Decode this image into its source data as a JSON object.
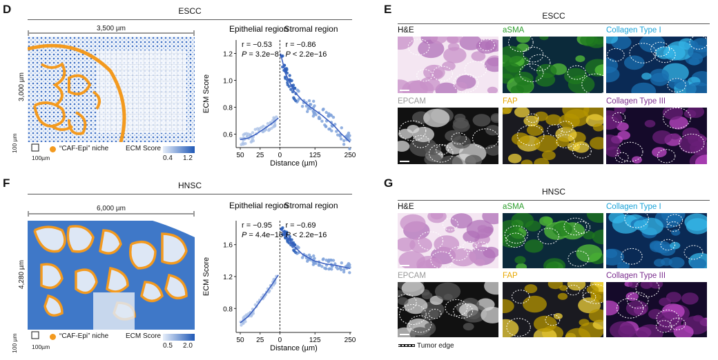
{
  "panels": {
    "D": {
      "letter": "D",
      "title": "ESCC",
      "width_label": "3,500 µm",
      "height_label": "3,000 µm",
      "scale_label_v": "100 µm",
      "scale_label_h": "100µm",
      "niche_label": "“CAF-Epi” niche",
      "ecm_label": "ECM Score",
      "cbar_min": "0.4",
      "cbar_max": "1.2"
    },
    "F": {
      "letter": "F",
      "title": "HNSC",
      "width_label": "6,000 µm",
      "height_label": "4,280 µm",
      "scale_label_v": "100 µm",
      "scale_label_h": "100µm",
      "niche_label": "“CAF-Epi” niche",
      "ecm_label": "ECM Score",
      "cbar_min": "0.5",
      "cbar_max": "2.0"
    },
    "E": {
      "letter": "E",
      "title": "ESCC"
    },
    "G": {
      "letter": "G",
      "title": "HNSC"
    }
  },
  "stains": [
    "H&E",
    "aSMA",
    "Collagen Type I",
    "EPCAM",
    "FAP",
    "Collagen Type III"
  ],
  "stain_colors": {
    "H&E": "#111111",
    "aSMA": "#2a9d2a",
    "Collagen Type I": "#1aa3d9",
    "EPCAM": "#999999",
    "FAP": "#e8a800",
    "Collagen Type III": "#7b2d8e"
  },
  "microscale_label": "100 µm",
  "legend_tumor_edge": "Tumor edge",
  "chart_data": [
    {
      "type": "scatter",
      "panel": "D",
      "region_left": "Epithelial region",
      "region_right": "Stromal region",
      "xlabel": "Distance (µm)",
      "ylabel": "ECM Score",
      "x_ticks": [
        "50",
        "25",
        "0",
        "125",
        "250"
      ],
      "y_ticks": [
        "0.6",
        "0.8",
        "1.0",
        "1.2"
      ],
      "ylim": [
        0.5,
        1.3
      ],
      "stats_left": {
        "r": "r = −0.53",
        "p_prefix": "P",
        "p_value": " = 3.2e−8"
      },
      "stats_right": {
        "r": "r = −0.86",
        "p_prefix": "P",
        "p_value": " < 2.2e−16"
      },
      "fit_left": {
        "x": [
          50,
          40,
          30,
          20,
          10,
          2
        ],
        "y": [
          0.56,
          0.57,
          0.6,
          0.64,
          0.68,
          0.72
        ]
      },
      "fit_right": {
        "x": [
          2,
          20,
          50,
          80,
          110,
          150,
          190,
          220,
          250
        ],
        "y": [
          1.2,
          1.05,
          0.92,
          0.85,
          0.8,
          0.74,
          0.67,
          0.6,
          0.54
        ]
      }
    },
    {
      "type": "scatter",
      "panel": "F",
      "region_left": "Epithelial region",
      "region_right": "Stromal region",
      "xlabel": "Distance (µm)",
      "ylabel": "ECM Score",
      "x_ticks": [
        "50",
        "25",
        "0",
        "125",
        "250"
      ],
      "y_ticks": [
        "0.8",
        "1.2",
        "1.6"
      ],
      "ylim": [
        0.5,
        1.9
      ],
      "stats_left": {
        "r": "r = −0.95",
        "p_prefix": "P",
        "p_value": " = 4.4e−16"
      },
      "stats_right": {
        "r": "r = −0.69",
        "p_prefix": "P",
        "p_value": " < 2.2e−16"
      },
      "fit_left": {
        "x": [
          50,
          40,
          30,
          20,
          10,
          2
        ],
        "y": [
          0.62,
          0.7,
          0.82,
          0.96,
          1.1,
          1.22
        ]
      },
      "fit_right": {
        "x": [
          2,
          20,
          50,
          80,
          120,
          160,
          200,
          250
        ],
        "y": [
          1.8,
          1.72,
          1.58,
          1.48,
          1.4,
          1.36,
          1.34,
          1.3
        ]
      }
    }
  ]
}
